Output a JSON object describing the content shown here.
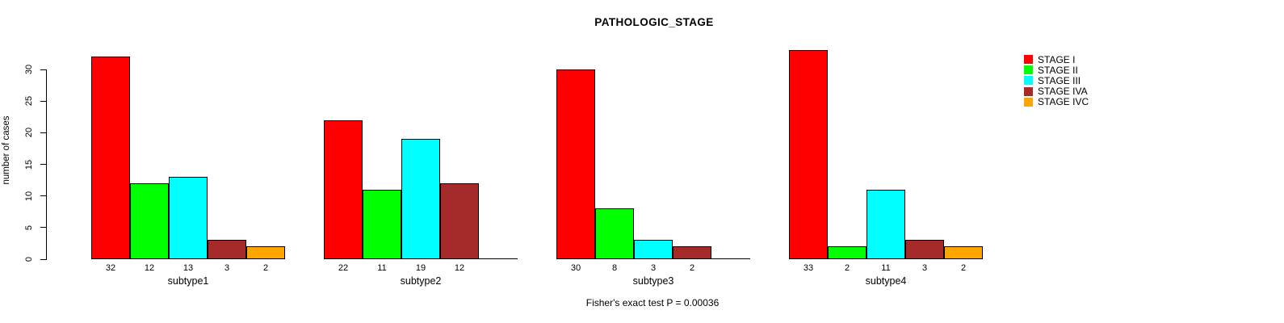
{
  "chart_data": {
    "type": "bar",
    "title": "PATHOLOGIC_STAGE",
    "ylabel": "number of cases",
    "ylim": [
      0,
      30
    ],
    "yticks": [
      0,
      5,
      10,
      15,
      20,
      25,
      30
    ],
    "grid": false,
    "legend_position": "right",
    "stages": [
      "STAGE I",
      "STAGE II",
      "STAGE III",
      "STAGE IVA",
      "STAGE IVC"
    ],
    "colors": [
      "#FF0000",
      "#00FF00",
      "#00FFFF",
      "#A52A2A",
      "#FFA500"
    ],
    "groups": [
      {
        "label": "subtype1",
        "values": [
          32,
          12,
          13,
          3,
          2
        ]
      },
      {
        "label": "subtype2",
        "values": [
          22,
          11,
          19,
          12,
          null
        ]
      },
      {
        "label": "subtype3",
        "values": [
          30,
          8,
          3,
          2,
          null
        ]
      },
      {
        "label": "subtype4",
        "values": [
          33,
          2,
          11,
          3,
          2
        ]
      }
    ],
    "annotation": "Fisher's exact test P = 0.00036"
  }
}
